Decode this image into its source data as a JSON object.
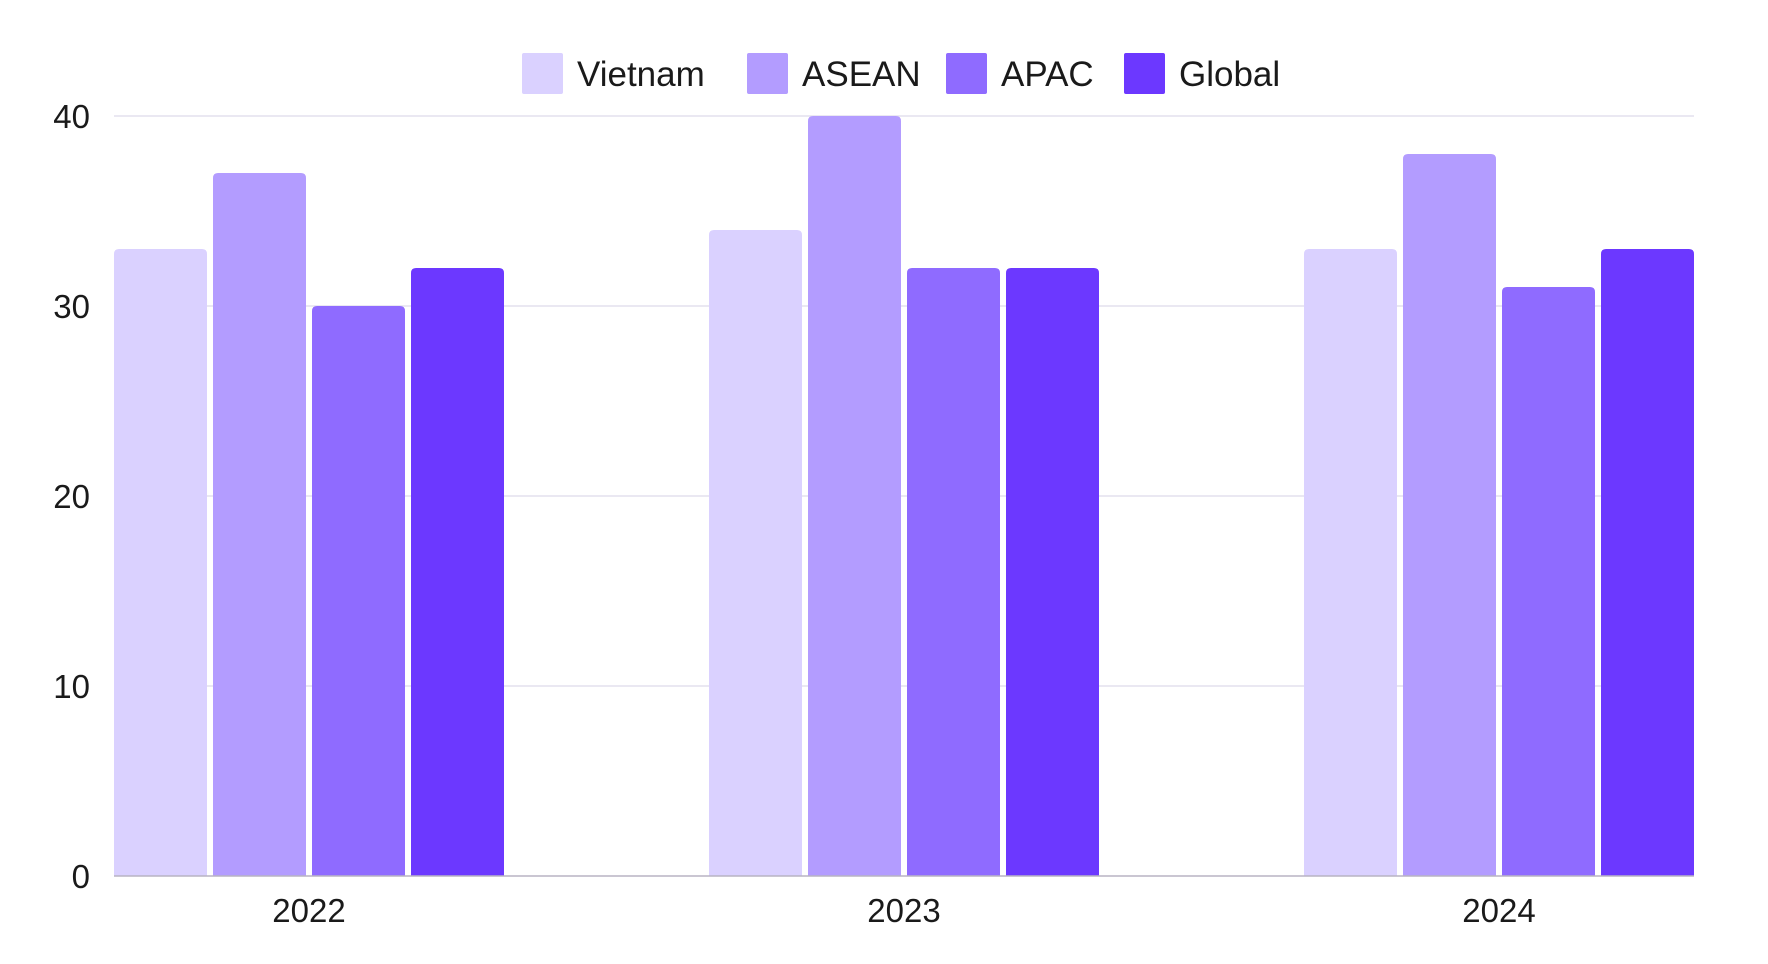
{
  "chart_data": {
    "type": "bar",
    "categories": [
      "2022",
      "2023",
      "2024"
    ],
    "series": [
      {
        "name": "Vietnam",
        "values": [
          33,
          34,
          33
        ],
        "color": "#dad1ff"
      },
      {
        "name": "ASEAN",
        "values": [
          37,
          40,
          38
        ],
        "color": "#b39cff"
      },
      {
        "name": "APAC",
        "values": [
          30,
          32,
          31
        ],
        "color": "#8f6bff"
      },
      {
        "name": "Global",
        "values": [
          32,
          32,
          33
        ],
        "color": "#6c38ff"
      }
    ],
    "ylim": [
      0,
      40
    ],
    "yticks": [
      "0",
      "10",
      "20",
      "30",
      "40"
    ],
    "grid": true,
    "legend": "top-center",
    "title": "",
    "xlabel": "",
    "ylabel": ""
  }
}
